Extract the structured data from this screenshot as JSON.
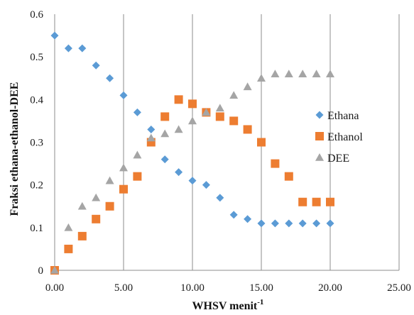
{
  "chart_data": {
    "type": "scatter",
    "title": "",
    "xlabel": "WHSV menit",
    "xlabel_superscript": "-1",
    "ylabel": "Fraksi ethana-ethanol-DEE",
    "xlim": [
      0,
      25
    ],
    "ylim": [
      0,
      0.6
    ],
    "x_ticks": [
      "0.00",
      "5.00",
      "10.00",
      "15.00",
      "20.00",
      "25.00"
    ],
    "y_ticks": [
      "0",
      "0.1",
      "0.2",
      "0.3",
      "0.4",
      "0.5",
      "0.6"
    ],
    "grid": "vertical",
    "legend_position": "right",
    "series": [
      {
        "name": "Ethana",
        "marker": "diamond",
        "color": "#5b9bd5",
        "x": [
          0,
          1,
          2,
          3,
          4,
          5,
          6,
          7,
          8,
          9,
          10,
          11,
          12,
          13,
          14,
          15,
          16,
          17,
          18,
          19,
          20
        ],
        "y": [
          0.55,
          0.52,
          0.52,
          0.48,
          0.45,
          0.41,
          0.37,
          0.33,
          0.26,
          0.23,
          0.21,
          0.2,
          0.17,
          0.13,
          0.12,
          0.11,
          0.11,
          0.11,
          0.11,
          0.11,
          0.11
        ]
      },
      {
        "name": "Ethanol",
        "marker": "square",
        "color": "#ed7d31",
        "x": [
          0,
          1,
          2,
          3,
          4,
          5,
          6,
          7,
          8,
          9,
          10,
          11,
          12,
          13,
          14,
          15,
          16,
          17,
          18,
          19,
          20
        ],
        "y": [
          0.0,
          0.05,
          0.08,
          0.12,
          0.15,
          0.19,
          0.22,
          0.3,
          0.36,
          0.4,
          0.39,
          0.37,
          0.36,
          0.35,
          0.33,
          0.3,
          0.25,
          0.22,
          0.16,
          0.16,
          0.16
        ]
      },
      {
        "name": "DEE",
        "marker": "triangle",
        "color": "#a5a5a5",
        "x": [
          0,
          1,
          2,
          3,
          4,
          5,
          6,
          7,
          8,
          9,
          10,
          11,
          12,
          13,
          14,
          15,
          16,
          17,
          18,
          19,
          20
        ],
        "y": [
          0.0,
          0.1,
          0.15,
          0.17,
          0.21,
          0.24,
          0.27,
          0.31,
          0.32,
          0.33,
          0.35,
          0.37,
          0.38,
          0.41,
          0.43,
          0.45,
          0.46,
          0.46,
          0.46,
          0.46,
          0.46
        ]
      }
    ]
  }
}
